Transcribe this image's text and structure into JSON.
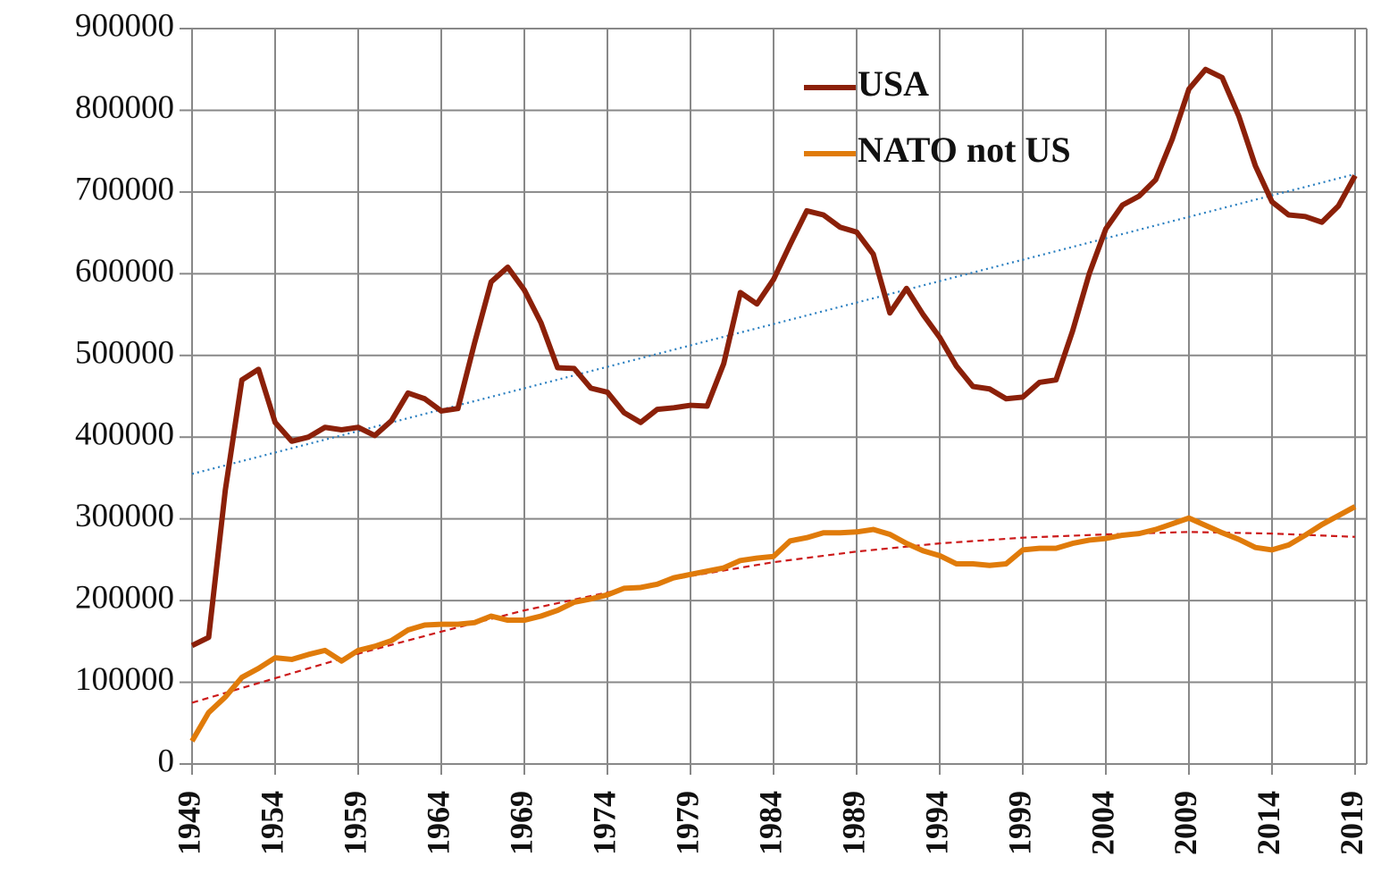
{
  "chart_data": {
    "type": "line",
    "x": [
      1949,
      1950,
      1951,
      1952,
      1953,
      1954,
      1955,
      1956,
      1957,
      1958,
      1959,
      1960,
      1961,
      1962,
      1963,
      1964,
      1965,
      1966,
      1967,
      1968,
      1969,
      1970,
      1971,
      1972,
      1973,
      1974,
      1975,
      1976,
      1977,
      1978,
      1979,
      1980,
      1981,
      1982,
      1983,
      1984,
      1985,
      1986,
      1987,
      1988,
      1989,
      1990,
      1991,
      1992,
      1993,
      1994,
      1995,
      1996,
      1997,
      1998,
      1999,
      2000,
      2001,
      2002,
      2003,
      2004,
      2005,
      2006,
      2007,
      2008,
      2009,
      2010,
      2011,
      2012,
      2013,
      2014,
      2015,
      2016,
      2017,
      2018,
      2019
    ],
    "series": [
      {
        "name": "USA",
        "color": "#8b2009",
        "values": [
          145000,
          155000,
          335000,
          470000,
          483000,
          418000,
          395000,
          400000,
          412000,
          409000,
          412000,
          402000,
          420000,
          454000,
          447000,
          432000,
          435000,
          515000,
          590000,
          608000,
          580000,
          540000,
          485000,
          484000,
          460000,
          455000,
          430000,
          418000,
          434000,
          436000,
          439000,
          438000,
          490000,
          577000,
          563000,
          593000,
          636000,
          677000,
          672000,
          657000,
          651000,
          624000,
          552000,
          582000,
          550000,
          522000,
          487000,
          462000,
          459000,
          447000,
          449000,
          467000,
          470000,
          530000,
          600000,
          655000,
          684000,
          695000,
          715000,
          765000,
          826000,
          850000,
          840000,
          793000,
          732000,
          688000,
          672000,
          670000,
          663000,
          683000,
          720000
        ]
      },
      {
        "name": "NATO not US",
        "color": "#e07b0a",
        "values": [
          28000,
          63000,
          82000,
          106000,
          117000,
          130000,
          128000,
          134000,
          139000,
          126000,
          139000,
          144000,
          151000,
          164000,
          170000,
          171000,
          171000,
          173000,
          181000,
          176000,
          176000,
          181000,
          188000,
          198000,
          202000,
          207000,
          215000,
          216000,
          220000,
          228000,
          232000,
          236000,
          240000,
          249000,
          252000,
          254000,
          273000,
          277000,
          283000,
          283000,
          284000,
          287000,
          281000,
          270000,
          261000,
          255000,
          245000,
          245000,
          243000,
          245000,
          262000,
          264000,
          264000,
          270000,
          274000,
          276000,
          280000,
          282000,
          287000,
          294000,
          301000,
          292000,
          283000,
          275000,
          265000,
          262000,
          268000,
          280000,
          293000,
          304000,
          315000
        ]
      }
    ],
    "trendlines": [
      {
        "series": 0,
        "style": "dotted",
        "color": "#2a7fc0",
        "x": [
          1949,
          2019
        ],
        "values": [
          355000,
          722000
        ]
      },
      {
        "series": 1,
        "style": "dashed",
        "color": "#cc1a1a",
        "x": [
          1949,
          1954,
          1959,
          1964,
          1969,
          1974,
          1979,
          1984,
          1989,
          1994,
          1999,
          2004,
          2009,
          2014,
          2019
        ],
        "values": [
          75000,
          105000,
          135000,
          162000,
          188000,
          210000,
          230000,
          247000,
          260000,
          270000,
          277000,
          281000,
          284000,
          282000,
          278000
        ]
      }
    ],
    "xlim": [
      1949,
      2019.7
    ],
    "xticks": [
      1949,
      1954,
      1959,
      1964,
      1969,
      1974,
      1979,
      1984,
      1989,
      1994,
      1999,
      2004,
      2009,
      2014,
      2019
    ],
    "ylim": [
      0,
      900000
    ],
    "yticks": [
      0,
      100000,
      200000,
      300000,
      400000,
      500000,
      600000,
      700000,
      800000,
      900000
    ],
    "grid": true,
    "legend": "upper right"
  }
}
